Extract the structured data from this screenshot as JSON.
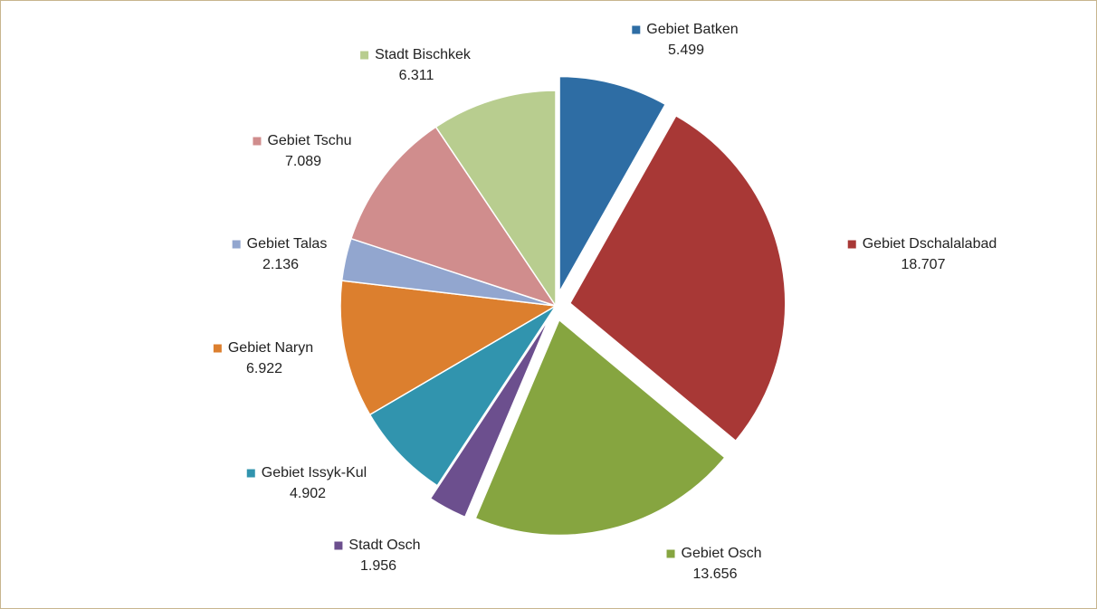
{
  "chart_data": {
    "type": "pie",
    "categories": [
      "Gebiet Batken",
      "Gebiet Dschalalabad",
      "Gebiet Osch",
      "Stadt Osch",
      "Gebiet Issyk-Kul",
      "Gebiet Naryn",
      "Gebiet Talas",
      "Gebiet Tschu",
      "Stadt Bischkek"
    ],
    "values": [
      5.499,
      18.707,
      13.656,
      1.956,
      4.902,
      6.922,
      2.136,
      7.089,
      6.311
    ],
    "colors": [
      "#2e6da4",
      "#a83836",
      "#86a540",
      "#6c4f8e",
      "#3194ae",
      "#dc7f2e",
      "#92a6cf",
      "#d08d8d",
      "#b8cd8f"
    ],
    "exploded": [
      true,
      true,
      true,
      true,
      false,
      false,
      false,
      false,
      false
    ]
  }
}
